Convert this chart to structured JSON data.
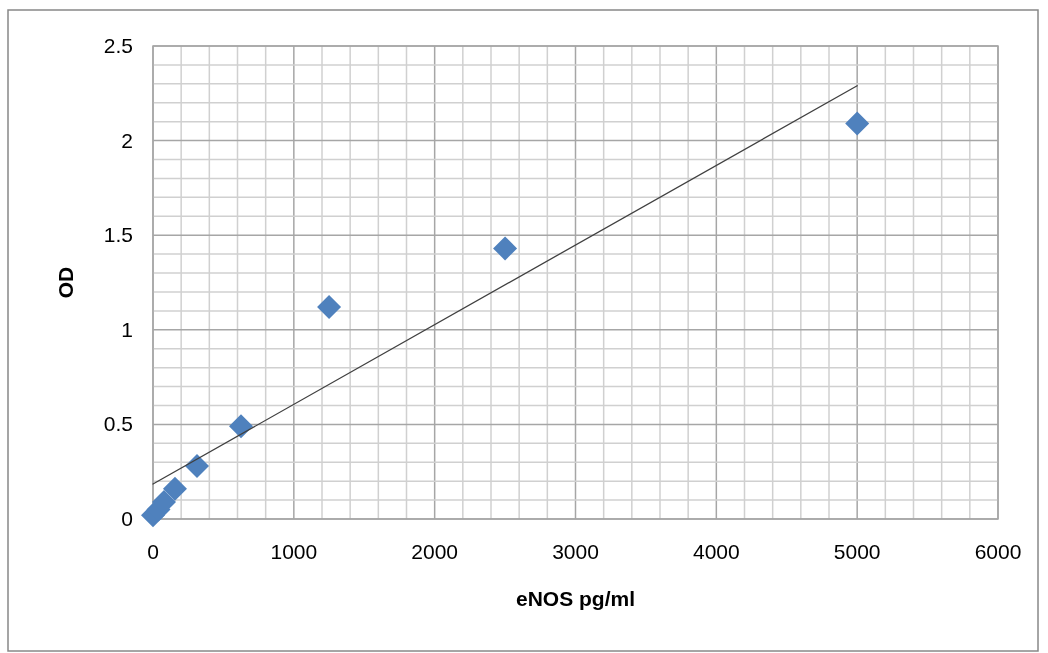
{
  "chart_data": {
    "type": "scatter",
    "xlabel": "eNOS pg/ml",
    "ylabel": "OD",
    "xlim": [
      0,
      6000
    ],
    "xticks": [
      0,
      {
        "value": 200,
        "label": null
      },
      {
        "value": 400,
        "label": null
      },
      {
        "value": 600,
        "label": null
      },
      {
        "value": 800,
        "label": null
      },
      1000,
      {
        "value": 1200,
        "label": null
      },
      {
        "value": 1400,
        "label": null
      },
      {
        "value": 1600,
        "label": null
      },
      {
        "value": 1800,
        "label": null
      },
      2000,
      {
        "value": 2200,
        "label": null
      },
      {
        "value": 2400,
        "label": null
      },
      {
        "value": 2600,
        "label": null
      },
      {
        "value": 2800,
        "label": null
      },
      3000,
      {
        "value": 3200,
        "label": null
      },
      {
        "value": 3400,
        "label": null
      },
      {
        "value": 3600,
        "label": null
      },
      {
        "value": 3800,
        "label": null
      },
      4000,
      {
        "value": 4200,
        "label": null
      },
      {
        "value": 4400,
        "label": null
      },
      {
        "value": 4600,
        "label": null
      },
      {
        "value": 4800,
        "label": null
      },
      5000,
      {
        "value": 5200,
        "label": null
      },
      {
        "value": 5400,
        "label": null
      },
      {
        "value": 5600,
        "label": null
      },
      {
        "value": 5800,
        "label": null
      },
      6000
    ],
    "ylim": [
      0,
      2.5
    ],
    "yticks": [
      0,
      {
        "value": 0.1,
        "label": null
      },
      {
        "value": 0.2,
        "label": null
      },
      {
        "value": 0.3,
        "label": null
      },
      {
        "value": 0.4,
        "label": null
      },
      0.5,
      {
        "value": 0.6,
        "label": null
      },
      {
        "value": 0.7,
        "label": null
      },
      {
        "value": 0.8,
        "label": null
      },
      {
        "value": 0.9,
        "label": null
      },
      1,
      {
        "value": 1.1,
        "label": null
      },
      {
        "value": 1.2,
        "label": null
      },
      {
        "value": 1.3,
        "label": null
      },
      {
        "value": 1.4,
        "label": null
      },
      1.5,
      {
        "value": 1.6,
        "label": null
      },
      {
        "value": 1.7,
        "label": null
      },
      {
        "value": 1.8,
        "label": null
      },
      {
        "value": 1.9,
        "label": null
      },
      2,
      {
        "value": 2.1,
        "label": null
      },
      {
        "value": 2.2,
        "label": null
      },
      {
        "value": 2.3,
        "label": null
      },
      {
        "value": 2.4,
        "label": null
      },
      2.5
    ],
    "grid": true,
    "series": [
      {
        "color": "#4f81bd",
        "marker": "diamond",
        "x": [
          0,
          39,
          78,
          156,
          312.5,
          625,
          1250,
          2500,
          5000
        ],
        "values": [
          0.02,
          0.05,
          0.09,
          0.16,
          0.28,
          0.49,
          1.12,
          1.43,
          2.09
        ]
      },
      {
        "type": "line",
        "color": "#404040",
        "marker": "none",
        "line_style": "solid",
        "x": [
          0,
          5000
        ],
        "values": [
          0.185,
          2.29
        ]
      }
    ]
  }
}
